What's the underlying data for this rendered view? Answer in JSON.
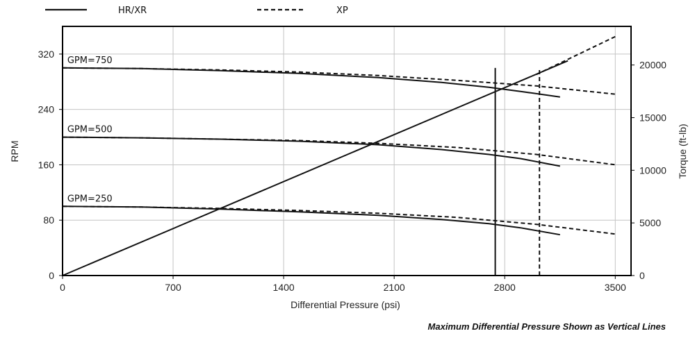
{
  "legend": [
    {
      "label": "HR/XR",
      "style": "solid"
    },
    {
      "label": "XP",
      "style": "dashed"
    }
  ],
  "footnote": "Maximum Differential Pressure Shown as Vertical Lines",
  "chart_data": {
    "type": "line",
    "xlabel": "Differential Pressure (psi)",
    "ylabel": "RPM",
    "y2label": "Torque (ft-lb)",
    "xlim": [
      0,
      3600
    ],
    "ylim": [
      0,
      360
    ],
    "y2lim": [
      0,
      23670
    ],
    "x_ticks": [
      0,
      700,
      1400,
      2100,
      2800,
      3500
    ],
    "y_ticks": [
      0,
      80,
      160,
      240,
      320
    ],
    "y2_ticks": [
      0,
      5000,
      10000,
      15000,
      20000
    ],
    "grid": true,
    "legend_position": "top",
    "curve_labels": [
      {
        "text": "GPM=750",
        "x": 30,
        "y": 303
      },
      {
        "text": "GPM=500",
        "x": 30,
        "y": 203
      },
      {
        "text": "GPM=250",
        "x": 30,
        "y": 103
      }
    ],
    "series": [
      {
        "name": "HR/XR",
        "style": "solid",
        "axis": "left",
        "group": "GPM=750",
        "x": [
          0,
          500,
          1000,
          1500,
          2000,
          2400,
          2700,
          2900,
          3150
        ],
        "y": [
          300,
          299,
          296,
          292,
          286,
          279,
          272,
          266,
          258
        ]
      },
      {
        "name": "XP",
        "style": "dashed",
        "axis": "left",
        "group": "GPM=750",
        "x": [
          0,
          500,
          1000,
          1500,
          2000,
          2500,
          3000,
          3500
        ],
        "y": [
          300,
          299,
          297,
          294,
          289,
          282,
          274,
          262
        ]
      },
      {
        "name": "HR/XR",
        "style": "solid",
        "axis": "left",
        "group": "GPM=500",
        "x": [
          0,
          500,
          1000,
          1500,
          2000,
          2400,
          2700,
          2900,
          3150
        ],
        "y": [
          200,
          199,
          197,
          194,
          189,
          182,
          175,
          169,
          158
        ]
      },
      {
        "name": "XP",
        "style": "dashed",
        "axis": "left",
        "group": "GPM=500",
        "x": [
          0,
          500,
          1000,
          1500,
          2000,
          2500,
          3000,
          3500
        ],
        "y": [
          200,
          199,
          197,
          195,
          191,
          185,
          175,
          160
        ]
      },
      {
        "name": "HR/XR",
        "style": "solid",
        "axis": "left",
        "group": "GPM=250",
        "x": [
          0,
          500,
          1000,
          1500,
          2000,
          2400,
          2700,
          2900,
          3150
        ],
        "y": [
          100,
          99,
          96,
          92,
          87,
          81,
          75,
          69,
          59
        ]
      },
      {
        "name": "XP",
        "style": "dashed",
        "axis": "left",
        "group": "GPM=250",
        "x": [
          0,
          500,
          1000,
          1500,
          2000,
          2500,
          3000,
          3500
        ],
        "y": [
          100,
          99,
          97,
          94,
          90,
          84,
          74,
          60
        ]
      },
      {
        "name": "HR/XR",
        "style": "solid",
        "axis": "right",
        "group": "Torque",
        "x": [
          0,
          3200
        ],
        "y": [
          0,
          20400
        ]
      },
      {
        "name": "XP",
        "style": "dashed",
        "axis": "right",
        "group": "Torque",
        "x": [
          3000,
          3500
        ],
        "y": [
          19100,
          22700
        ]
      }
    ],
    "max_pressure_lines": [
      {
        "name": "HR/XR",
        "style": "solid",
        "x": 2740,
        "y_top": 300
      },
      {
        "name": "XP",
        "style": "dashed",
        "x": 3020,
        "y_top": 300
      }
    ]
  }
}
